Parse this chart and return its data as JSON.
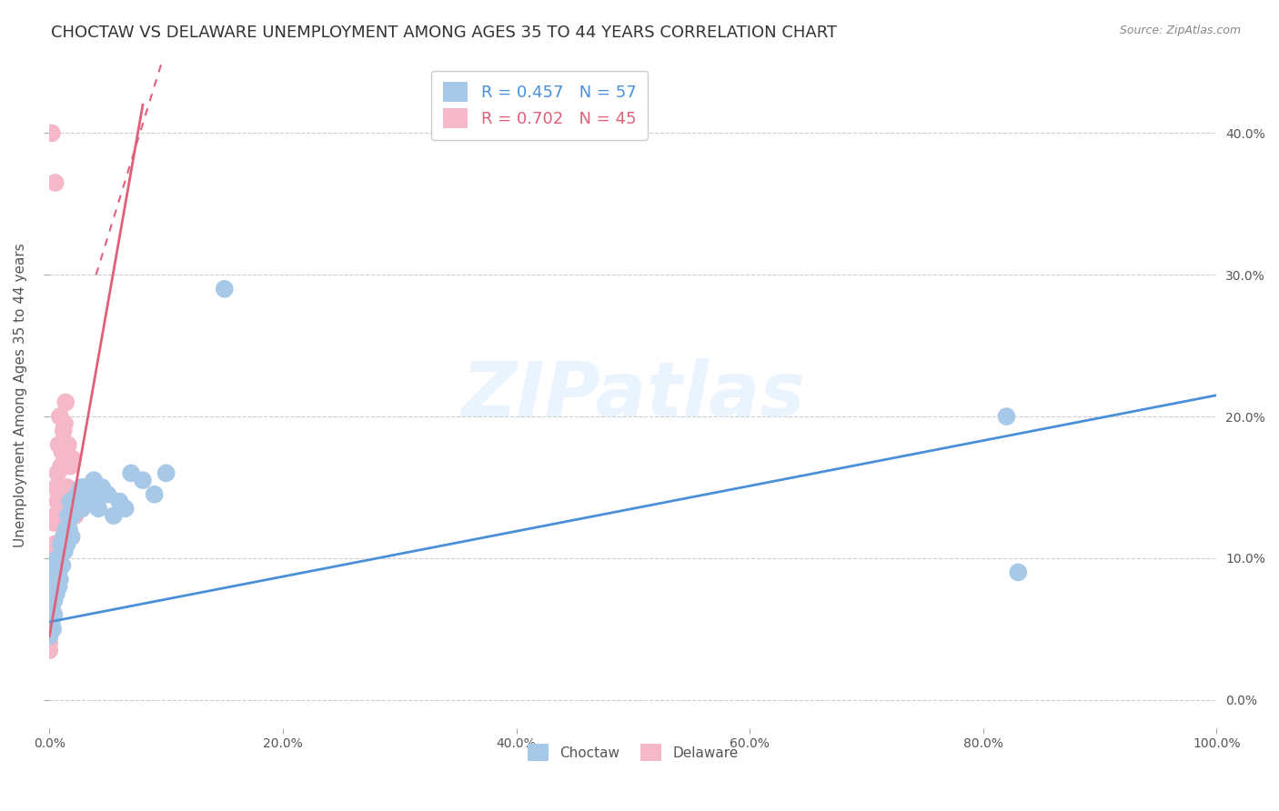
{
  "title": "CHOCTAW VS DELAWARE UNEMPLOYMENT AMONG AGES 35 TO 44 YEARS CORRELATION CHART",
  "source": "Source: ZipAtlas.com",
  "ylabel": "Unemployment Among Ages 35 to 44 years",
  "xlim": [
    0,
    1.0
  ],
  "ylim": [
    -0.02,
    0.45
  ],
  "xticks": [
    0.0,
    0.2,
    0.4,
    0.6,
    0.8,
    1.0
  ],
  "xticklabels": [
    "0.0%",
    "20.0%",
    "40.0%",
    "60.0%",
    "80.0%",
    "100.0%"
  ],
  "yticks": [
    0.0,
    0.1,
    0.2,
    0.3,
    0.4
  ],
  "yticklabels": [
    "0.0%",
    "10.0%",
    "20.0%",
    "30.0%",
    "40.0%"
  ],
  "choctaw_color": "#a8c8e8",
  "delaware_color": "#f4b8c8",
  "choctaw_line_color": "#4a90d9",
  "delaware_line_color": "#e0607a",
  "R_choctaw": 0.457,
  "N_choctaw": 57,
  "R_delaware": 0.702,
  "N_delaware": 45,
  "background_color": "#ffffff",
  "watermark_text": "ZIPatlas",
  "title_fontsize": 13,
  "axis_label_fontsize": 11,
  "tick_fontsize": 10,
  "choctaw_x": [
    0.0,
    0.0,
    0.0,
    0.0,
    0.0,
    0.001,
    0.001,
    0.002,
    0.002,
    0.003,
    0.003,
    0.004,
    0.004,
    0.005,
    0.005,
    0.006,
    0.006,
    0.007,
    0.007,
    0.008,
    0.008,
    0.009,
    0.009,
    0.01,
    0.011,
    0.012,
    0.013,
    0.014,
    0.015,
    0.016,
    0.017,
    0.018,
    0.019,
    0.02,
    0.022,
    0.024,
    0.025,
    0.027,
    0.028,
    0.03,
    0.032,
    0.035,
    0.038,
    0.04,
    0.042,
    0.045,
    0.05,
    0.055,
    0.06,
    0.065,
    0.07,
    0.08,
    0.09,
    0.1,
    0.15,
    0.82,
    0.83
  ],
  "choctaw_y": [
    0.055,
    0.065,
    0.075,
    0.045,
    0.05,
    0.06,
    0.07,
    0.055,
    0.065,
    0.08,
    0.05,
    0.07,
    0.06,
    0.08,
    0.09,
    0.095,
    0.075,
    0.085,
    0.1,
    0.09,
    0.08,
    0.1,
    0.085,
    0.11,
    0.095,
    0.115,
    0.105,
    0.12,
    0.11,
    0.13,
    0.12,
    0.14,
    0.115,
    0.13,
    0.135,
    0.145,
    0.14,
    0.15,
    0.135,
    0.15,
    0.14,
    0.145,
    0.155,
    0.14,
    0.135,
    0.15,
    0.145,
    0.13,
    0.14,
    0.135,
    0.16,
    0.155,
    0.145,
    0.16,
    0.29,
    0.2,
    0.09
  ],
  "delaware_x": [
    0.0,
    0.0,
    0.0,
    0.0,
    0.0,
    0.0,
    0.0,
    0.0,
    0.0,
    0.0,
    0.001,
    0.001,
    0.002,
    0.002,
    0.003,
    0.003,
    0.004,
    0.004,
    0.005,
    0.005,
    0.006,
    0.006,
    0.007,
    0.007,
    0.008,
    0.009,
    0.01,
    0.011,
    0.012,
    0.013,
    0.014,
    0.015,
    0.016,
    0.017,
    0.018,
    0.019,
    0.02,
    0.022,
    0.024,
    0.025,
    0.002,
    0.005,
    0.008,
    0.01,
    0.015
  ],
  "delaware_y": [
    0.045,
    0.055,
    0.065,
    0.075,
    0.085,
    0.035,
    0.04,
    0.05,
    0.06,
    0.07,
    0.09,
    0.06,
    0.075,
    0.085,
    0.095,
    0.105,
    0.125,
    0.085,
    0.11,
    0.13,
    0.1,
    0.15,
    0.14,
    0.16,
    0.18,
    0.2,
    0.165,
    0.175,
    0.19,
    0.195,
    0.21,
    0.165,
    0.18,
    0.145,
    0.165,
    0.135,
    0.17,
    0.13,
    0.145,
    0.135,
    0.4,
    0.365,
    0.145,
    0.135,
    0.15
  ]
}
